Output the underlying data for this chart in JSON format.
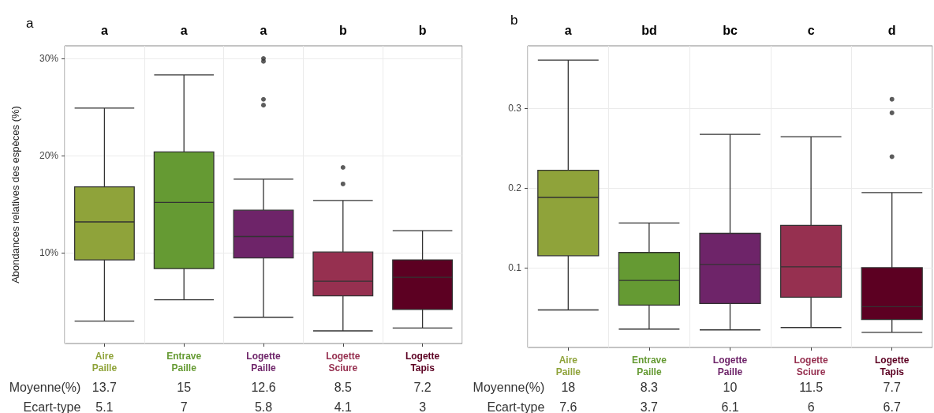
{
  "chart_data": [
    {
      "type": "box",
      "title": "a",
      "ylabel": "Abondances relatives des espèces (%)",
      "categories": [
        "Aire Paille",
        "Entrave Paille",
        "Logette Paille",
        "Logette Sciure",
        "Logette Tapis"
      ],
      "colors": [
        "#8fa33a",
        "#659a33",
        "#6e2469",
        "#963050",
        "#5c0022"
      ],
      "boxes": [
        {
          "low": 3.0,
          "q1": 9.3,
          "median": 13.2,
          "q3": 16.8,
          "high": 24.9
        },
        {
          "low": 5.2,
          "q1": 8.4,
          "median": 15.2,
          "q3": 20.4,
          "high": 28.3
        },
        {
          "low": 3.4,
          "q1": 9.5,
          "median": 11.7,
          "q3": 14.4,
          "high": 17.6,
          "outliers": [
            30.0,
            29.7,
            25.8,
            25.2
          ]
        },
        {
          "low": 2.0,
          "q1": 5.6,
          "median": 7.1,
          "q3": 10.1,
          "high": 15.4,
          "outliers": [
            18.8,
            17.1
          ]
        },
        {
          "low": 2.3,
          "q1": 4.2,
          "median": 7.5,
          "q3": 9.3,
          "high": 12.3
        }
      ],
      "ylim": [
        0.7,
        31.3
      ],
      "yticks": [
        {
          "value": 10,
          "label": "10%"
        },
        {
          "value": 20,
          "label": "20%"
        },
        {
          "value": 30,
          "label": "30%"
        }
      ],
      "grid": true,
      "annotations": [
        "a",
        "a",
        "a",
        "b",
        "b",
        "Moyenne(%)",
        "13.7",
        "15",
        "12.6",
        "8.5",
        "7.2",
        "Ecart-type",
        "5.1",
        "7",
        "5.8",
        "4.1",
        "3"
      ]
    },
    {
      "type": "box",
      "title": "b",
      "categories": [
        "Aire Paille",
        "Entrave Paille",
        "Logette Paille",
        "Logette Sciure",
        "Logette Tapis"
      ],
      "colors": [
        "#8fa33a",
        "#659a33",
        "#6e2469",
        "#963050",
        "#5c0022"
      ],
      "boxes": [
        {
          "low": 0.047,
          "q1": 0.115,
          "median": 0.188,
          "q3": 0.222,
          "high": 0.36
        },
        {
          "low": 0.023,
          "q1": 0.053,
          "median": 0.084,
          "q3": 0.119,
          "high": 0.156
        },
        {
          "low": 0.022,
          "q1": 0.055,
          "median": 0.104,
          "q3": 0.143,
          "high": 0.267
        },
        {
          "low": 0.025,
          "q1": 0.063,
          "median": 0.101,
          "q3": 0.153,
          "high": 0.264
        },
        {
          "low": 0.019,
          "q1": 0.035,
          "median": 0.051,
          "q3": 0.1,
          "high": 0.194,
          "outliers": [
            0.311,
            0.294,
            0.239
          ]
        }
      ],
      "ylim": [
        0,
        0.378
      ],
      "yticks": [
        0.1,
        0.2,
        0.3
      ],
      "grid": true,
      "annotations": [
        "a",
        "bd",
        "bc",
        "c",
        "d",
        "Moyenne(%)",
        "18",
        "8.3",
        "10",
        "11.5",
        "7.7",
        "Ecart-type",
        "7.6",
        "3.7",
        "6.1",
        "6",
        "6.7"
      ]
    }
  ]
}
